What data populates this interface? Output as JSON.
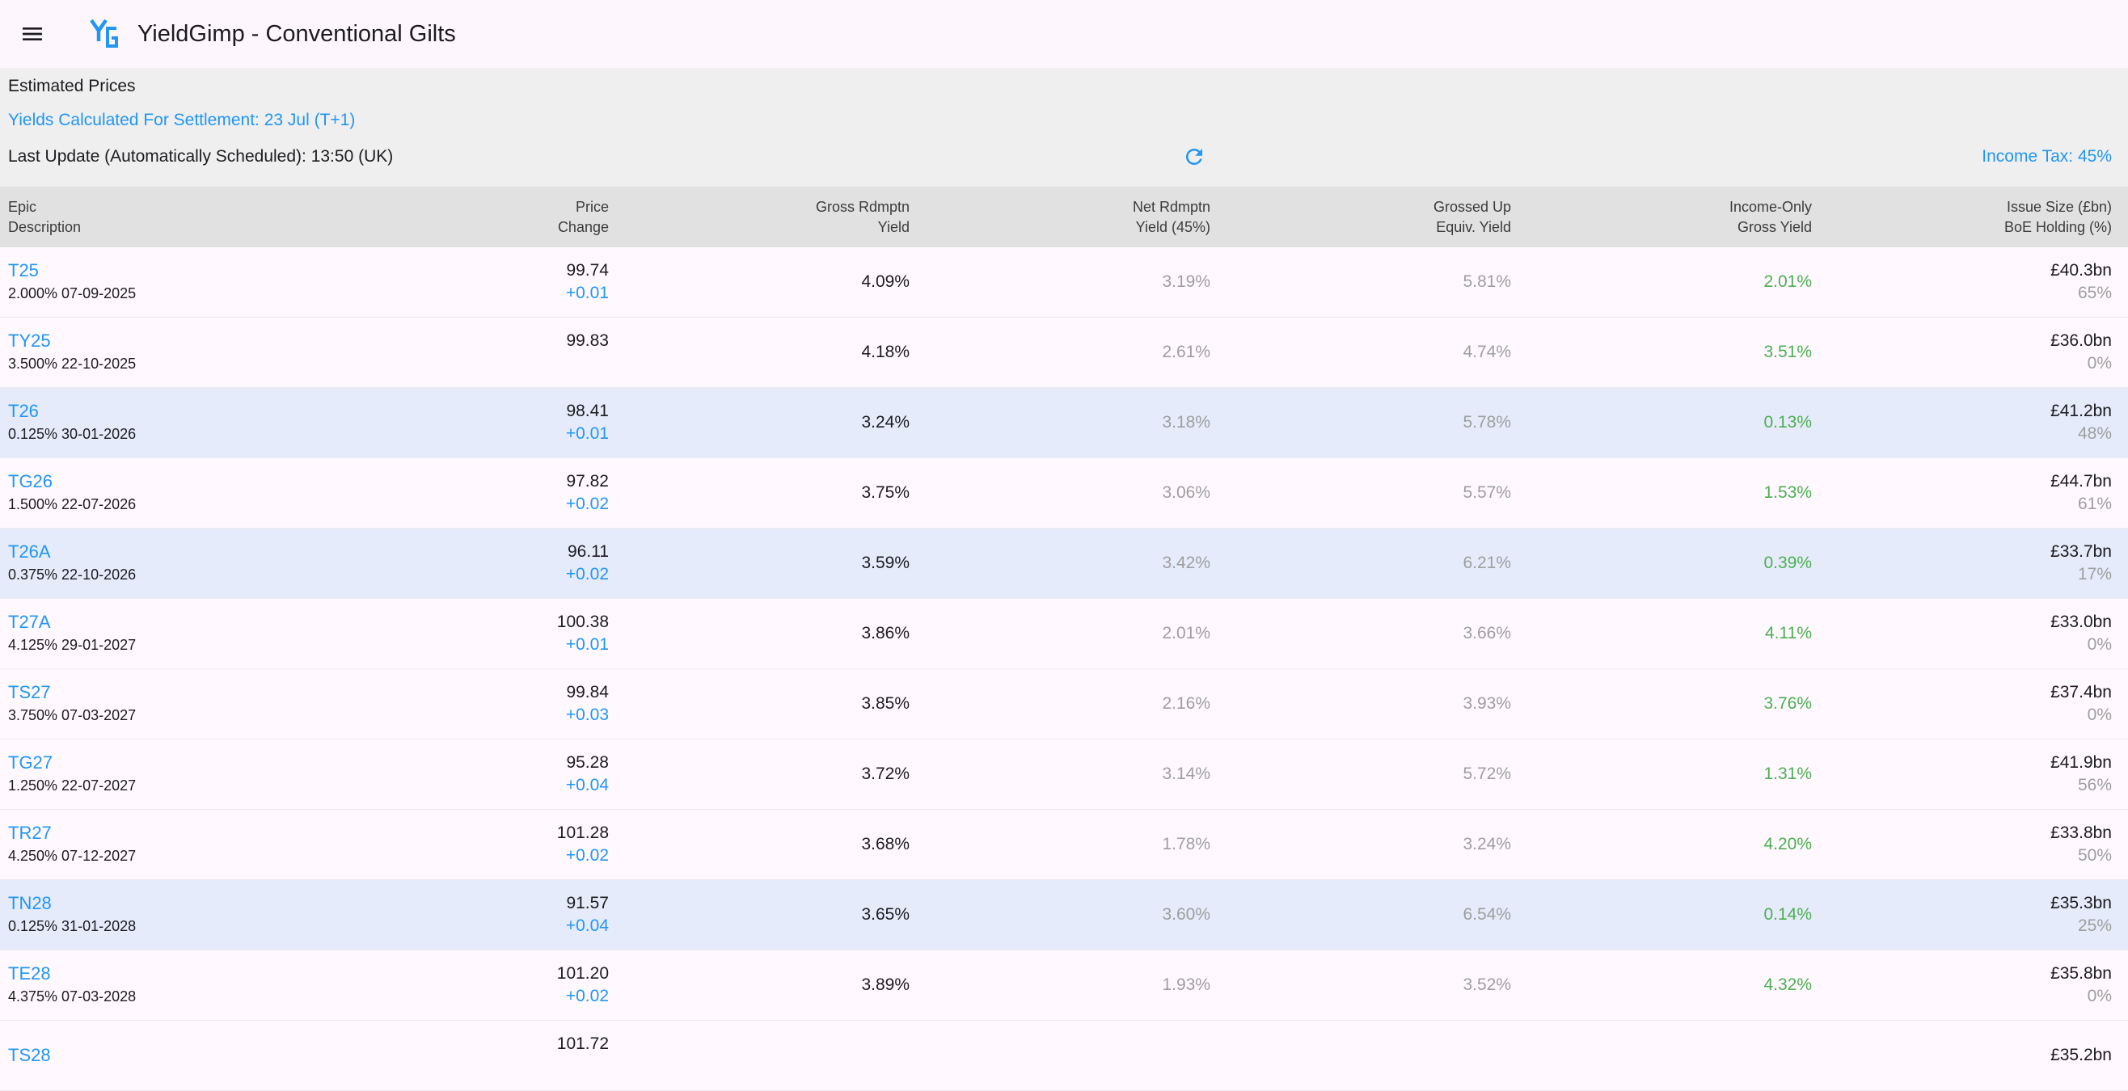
{
  "app": {
    "title": "YieldGimp - Conventional Gilts"
  },
  "info": {
    "estimated": "Estimated Prices",
    "settlement": "Yields Calculated For Settlement: 23 Jul (T+1)",
    "last_update": "Last Update (Automatically Scheduled): 13:50 (UK)",
    "income_tax": "Income Tax: 45%"
  },
  "columns": [
    [
      "Epic",
      "Description"
    ],
    [
      "Price",
      "Change"
    ],
    [
      "Gross Rdmptn",
      "Yield"
    ],
    [
      "Net Rdmptn",
      "Yield (45%)"
    ],
    [
      "Grossed Up",
      "Equiv. Yield"
    ],
    [
      "Income-Only",
      "Gross Yield"
    ],
    [
      "Issue Size (£bn)",
      "BoE Holding (%)"
    ]
  ],
  "rows": [
    {
      "epic": "T25",
      "desc": "2.000% 07-09-2025",
      "price": "99.74",
      "change": "+0.01",
      "gross": "4.09%",
      "net": "3.19%",
      "grossed": "5.81%",
      "income": "2.01%",
      "size": "£40.3bn",
      "boe": "65%",
      "highlight": false
    },
    {
      "epic": "TY25",
      "desc": "3.500% 22-10-2025",
      "price": "99.83",
      "change": "",
      "gross": "4.18%",
      "net": "2.61%",
      "grossed": "4.74%",
      "income": "3.51%",
      "size": "£36.0bn",
      "boe": "0%",
      "highlight": false
    },
    {
      "epic": "T26",
      "desc": "0.125% 30-01-2026",
      "price": "98.41",
      "change": "+0.01",
      "gross": "3.24%",
      "net": "3.18%",
      "grossed": "5.78%",
      "income": "0.13%",
      "size": "£41.2bn",
      "boe": "48%",
      "highlight": true
    },
    {
      "epic": "TG26",
      "desc": "1.500% 22-07-2026",
      "price": "97.82",
      "change": "+0.02",
      "gross": "3.75%",
      "net": "3.06%",
      "grossed": "5.57%",
      "income": "1.53%",
      "size": "£44.7bn",
      "boe": "61%",
      "highlight": false
    },
    {
      "epic": "T26A",
      "desc": "0.375% 22-10-2026",
      "price": "96.11",
      "change": "+0.02",
      "gross": "3.59%",
      "net": "3.42%",
      "grossed": "6.21%",
      "income": "0.39%",
      "size": "£33.7bn",
      "boe": "17%",
      "highlight": true
    },
    {
      "epic": "T27A",
      "desc": "4.125% 29-01-2027",
      "price": "100.38",
      "change": "+0.01",
      "gross": "3.86%",
      "net": "2.01%",
      "grossed": "3.66%",
      "income": "4.11%",
      "size": "£33.0bn",
      "boe": "0%",
      "highlight": false
    },
    {
      "epic": "TS27",
      "desc": "3.750% 07-03-2027",
      "price": "99.84",
      "change": "+0.03",
      "gross": "3.85%",
      "net": "2.16%",
      "grossed": "3.93%",
      "income": "3.76%",
      "size": "£37.4bn",
      "boe": "0%",
      "highlight": false
    },
    {
      "epic": "TG27",
      "desc": "1.250% 22-07-2027",
      "price": "95.28",
      "change": "+0.04",
      "gross": "3.72%",
      "net": "3.14%",
      "grossed": "5.72%",
      "income": "1.31%",
      "size": "£41.9bn",
      "boe": "56%",
      "highlight": false
    },
    {
      "epic": "TR27",
      "desc": "4.250% 07-12-2027",
      "price": "101.28",
      "change": "+0.02",
      "gross": "3.68%",
      "net": "1.78%",
      "grossed": "3.24%",
      "income": "4.20%",
      "size": "£33.8bn",
      "boe": "50%",
      "highlight": false
    },
    {
      "epic": "TN28",
      "desc": "0.125% 31-01-2028",
      "price": "91.57",
      "change": "+0.04",
      "gross": "3.65%",
      "net": "3.60%",
      "grossed": "6.54%",
      "income": "0.14%",
      "size": "£35.3bn",
      "boe": "25%",
      "highlight": true
    },
    {
      "epic": "TE28",
      "desc": "4.375% 07-03-2028",
      "price": "101.20",
      "change": "+0.02",
      "gross": "3.89%",
      "net": "1.93%",
      "grossed": "3.52%",
      "income": "4.32%",
      "size": "£35.8bn",
      "boe": "0%",
      "highlight": false
    },
    {
      "epic": "TS28",
      "desc": "",
      "price": "101.72",
      "change": "",
      "gross": "",
      "net": "",
      "grossed": "",
      "income": "",
      "size": "£35.2bn",
      "boe": "",
      "highlight": false
    }
  ],
  "colors": {
    "accent": "#2196f3",
    "positive": "#4caf50",
    "muted": "#9e9e9e",
    "highlight_row": "#e5ebfb",
    "header_bg": "#e1e1e2",
    "info_bg": "#efeff0"
  },
  "icons": {
    "menu": "menu-icon",
    "logo": "yieldgimp-logo",
    "refresh": "refresh-icon"
  }
}
